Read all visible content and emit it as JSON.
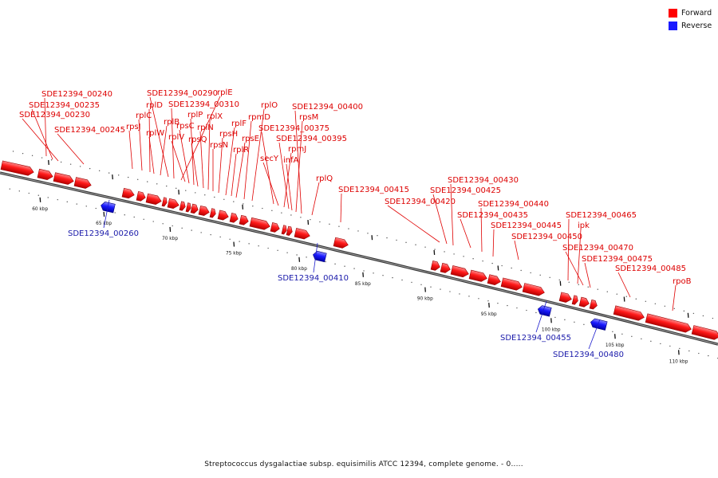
{
  "legend": {
    "forward": {
      "label": "Forward",
      "color": "#ff0000"
    },
    "reverse": {
      "label": "Reverse",
      "color": "#1a1aff"
    }
  },
  "caption": "Streptococcus dysgalactiae subsp. equisimilis ATCC 12394, complete genome. - 0.....",
  "axis_ticks": [
    "60 kbp",
    "65 kbp",
    "70 kbp",
    "75 kbp",
    "80 kbp",
    "85 kbp",
    "90 kbp",
    "95 kbp",
    "100 kbp",
    "105 kbp",
    "110 kbp"
  ],
  "forward_labels": [
    "SDE12394_00240",
    "SDE12394_00235",
    "SDE12394_00230",
    "SDE12394_00245",
    "rpsJ",
    "rplC",
    "rplD",
    "rplW",
    "rplB",
    "SDE12394_00290",
    "SDE12394_00310",
    "rplE",
    "rplV",
    "rpsC",
    "rplP",
    "rpsQ",
    "rplN",
    "rplX",
    "rpsN",
    "rpsH",
    "rplF",
    "rplR",
    "rpsE",
    "rpmD",
    "rplO",
    "SDE12394_00375",
    "secY",
    "rpmJ",
    "SDE12394_00395",
    "infA",
    "rpsM",
    "SDE12394_00400",
    "rplQ",
    "SDE12394_00415",
    "SDE12394_00420",
    "SDE12394_00425",
    "SDE12394_00430",
    "SDE12394_00435",
    "SDE12394_00440",
    "SDE12394_00445",
    "SDE12394_00450",
    "SDE12394_00465",
    "ipk",
    "SDE12394_00470",
    "SDE12394_00475",
    "SDE12394_00485",
    "rpoB"
  ],
  "reverse_labels": [
    "SDE12394_00260",
    "SDE12394_00410",
    "SDE12394_00455",
    "SDE12394_00480"
  ]
}
